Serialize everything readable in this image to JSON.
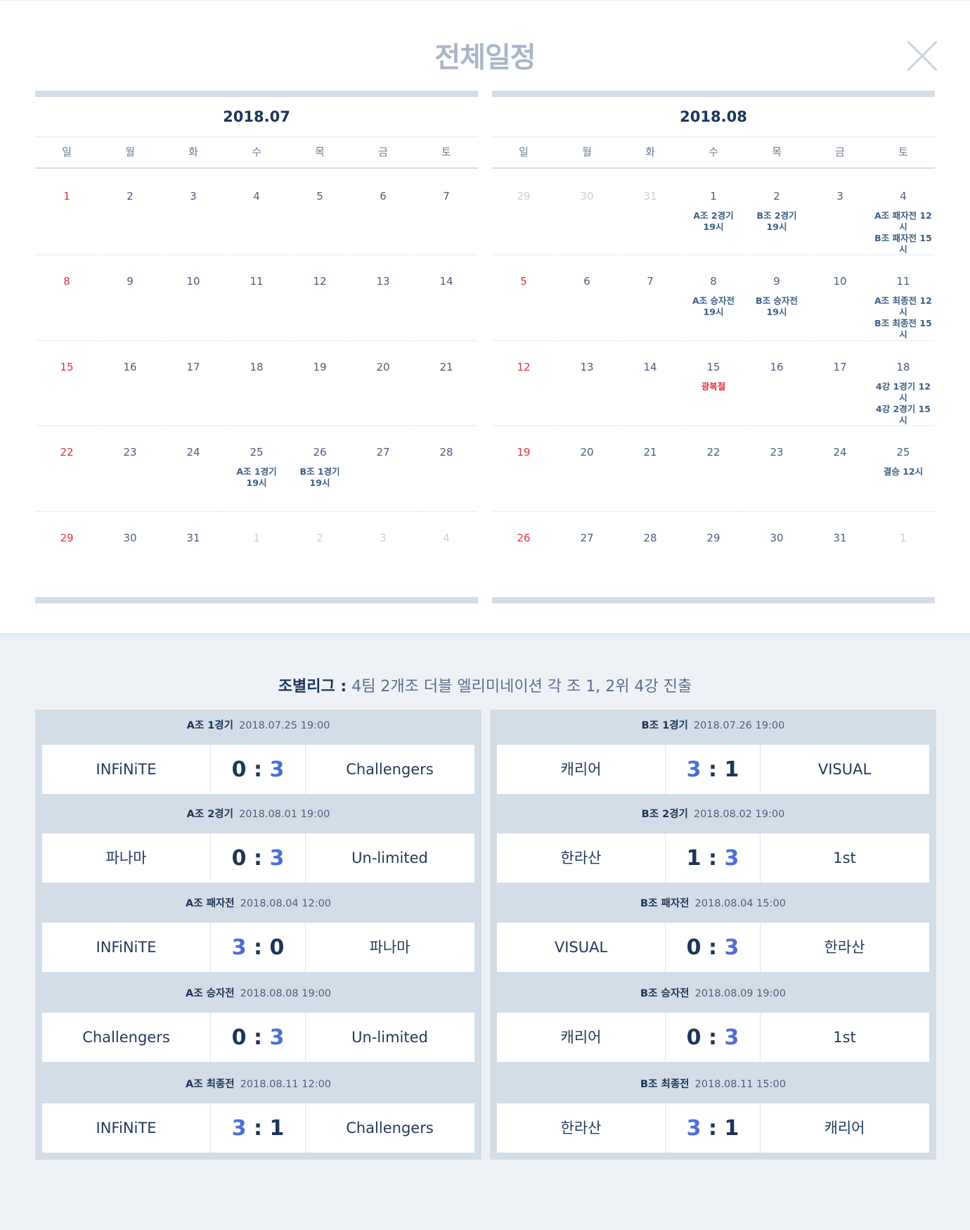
{
  "title": "전체일정",
  "calendars": [
    {
      "month": "2018.07",
      "weekdays": [
        "일",
        "월",
        "화",
        "수",
        "목",
        "금",
        "토"
      ],
      "days": [
        {
          "n": "1",
          "t": "sun"
        },
        {
          "n": "2"
        },
        {
          "n": "3"
        },
        {
          "n": "4"
        },
        {
          "n": "5"
        },
        {
          "n": "6"
        },
        {
          "n": "7"
        },
        {
          "n": "8",
          "t": "sun"
        },
        {
          "n": "9"
        },
        {
          "n": "10"
        },
        {
          "n": "11"
        },
        {
          "n": "12"
        },
        {
          "n": "13"
        },
        {
          "n": "14"
        },
        {
          "n": "15",
          "t": "sun"
        },
        {
          "n": "16"
        },
        {
          "n": "17"
        },
        {
          "n": "18"
        },
        {
          "n": "19"
        },
        {
          "n": "20"
        },
        {
          "n": "21"
        },
        {
          "n": "22",
          "t": "sun"
        },
        {
          "n": "23"
        },
        {
          "n": "24"
        },
        {
          "n": "25",
          "ev": "A조 1경기\n19시"
        },
        {
          "n": "26",
          "ev": "B조 1경기\n19시"
        },
        {
          "n": "27"
        },
        {
          "n": "28"
        },
        {
          "n": "29",
          "t": "sun"
        },
        {
          "n": "30"
        },
        {
          "n": "31"
        },
        {
          "n": "1",
          "t": "other"
        },
        {
          "n": "2",
          "t": "other"
        },
        {
          "n": "3",
          "t": "other"
        },
        {
          "n": "4",
          "t": "other"
        }
      ]
    },
    {
      "month": "2018.08",
      "weekdays": [
        "일",
        "월",
        "화",
        "수",
        "목",
        "금",
        "토"
      ],
      "days": [
        {
          "n": "29",
          "t": "other"
        },
        {
          "n": "30",
          "t": "other"
        },
        {
          "n": "31",
          "t": "other"
        },
        {
          "n": "1",
          "ev": "A조 2경기\n19시"
        },
        {
          "n": "2",
          "ev": "B조 2경기\n19시"
        },
        {
          "n": "3"
        },
        {
          "n": "4",
          "ev": "A조 패자전 12시\nB조 패자전 15시"
        },
        {
          "n": "5",
          "t": "sun"
        },
        {
          "n": "6"
        },
        {
          "n": "7"
        },
        {
          "n": "8",
          "ev": "A조 승자전\n19시"
        },
        {
          "n": "9",
          "ev": "B조 승자전\n19시"
        },
        {
          "n": "10"
        },
        {
          "n": "11",
          "ev": "A조 최종전 12시\nB조 최종전 15시"
        },
        {
          "n": "12",
          "t": "sun"
        },
        {
          "n": "13"
        },
        {
          "n": "14"
        },
        {
          "n": "15",
          "t": "hol",
          "ev": "광복절"
        },
        {
          "n": "16"
        },
        {
          "n": "17"
        },
        {
          "n": "18",
          "ev": "4강 1경기 12시\n4강 2경기 15시"
        },
        {
          "n": "19",
          "t": "sun"
        },
        {
          "n": "20"
        },
        {
          "n": "21"
        },
        {
          "n": "22"
        },
        {
          "n": "23"
        },
        {
          "n": "24"
        },
        {
          "n": "25",
          "ev": "결승 12시"
        },
        {
          "n": "26",
          "t": "sun"
        },
        {
          "n": "27"
        },
        {
          "n": "28"
        },
        {
          "n": "29"
        },
        {
          "n": "30"
        },
        {
          "n": "31"
        },
        {
          "n": "1",
          "t": "other"
        }
      ]
    }
  ],
  "league": {
    "label": "조별리그 :",
    "desc": "4팀 2개조 더블 엘리미네이션 각 조 1, 2위 4강 진출"
  },
  "matches": [
    {
      "name": "A조 1경기",
      "date": "2018.07.25 19:00",
      "home": "INFiNiTE",
      "hs": "0",
      "as": "3",
      "away": "Challengers",
      "win": "away"
    },
    {
      "name": "B조 1경기",
      "date": "2018.07.26 19:00",
      "home": "캐리어",
      "hs": "3",
      "as": "1",
      "away": "VISUAL",
      "win": "home"
    },
    {
      "name": "A조 2경기",
      "date": "2018.08.01 19:00",
      "home": "파나마",
      "hs": "0",
      "as": "3",
      "away": "Un-limited",
      "win": "away"
    },
    {
      "name": "B조 2경기",
      "date": "2018.08.02 19:00",
      "home": "한라산",
      "hs": "1",
      "as": "3",
      "away": "1st",
      "win": "away"
    },
    {
      "name": "A조 패자전",
      "date": "2018.08.04 12:00",
      "home": "INFiNiTE",
      "hs": "3",
      "as": "0",
      "away": "파나마",
      "win": "home"
    },
    {
      "name": "B조 패자전",
      "date": "2018.08.04 15:00",
      "home": "VISUAL",
      "hs": "0",
      "as": "3",
      "away": "한라산",
      "win": "away"
    },
    {
      "name": "A조 승자전",
      "date": "2018.08.08 19:00",
      "home": "Challengers",
      "hs": "0",
      "as": "3",
      "away": "Un-limited",
      "win": "away"
    },
    {
      "name": "B조 승자전",
      "date": "2018.08.09 19:00",
      "home": "캐리어",
      "hs": "0",
      "as": "3",
      "away": "1st",
      "win": "away"
    },
    {
      "name": "A조 최종전",
      "date": "2018.08.11 12:00",
      "home": "INFiNiTE",
      "hs": "3",
      "as": "1",
      "away": "Challengers",
      "win": "home"
    },
    {
      "name": "B조 최종전",
      "date": "2018.08.11 15:00",
      "home": "한라산",
      "hs": "3",
      "as": "1",
      "away": "캐리어",
      "win": "home"
    }
  ]
}
